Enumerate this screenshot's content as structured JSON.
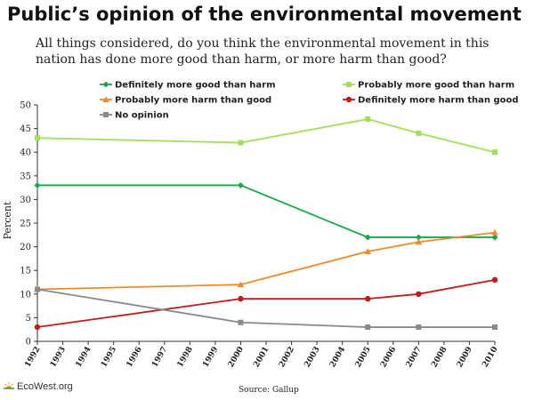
{
  "title": "Public’s opinion of the environmental movement",
  "subtitle": "All things considered, do you think the environmental movement in this nation has done more good than harm, or more harm than good?",
  "source": "Source: Gallup",
  "logo_text": "EcoWest.org",
  "chart_data": {
    "type": "line",
    "ylabel": "Percent",
    "ylim": [
      0,
      50
    ],
    "yticks": [
      0,
      5,
      10,
      15,
      20,
      25,
      30,
      35,
      40,
      45,
      50
    ],
    "xlim": [
      1992,
      2010
    ],
    "xticks": [
      "1992",
      "1993",
      "1994",
      "1995",
      "1996",
      "1997",
      "1998",
      "1999",
      "2000",
      "2001",
      "2002",
      "2003",
      "2004",
      "2005",
      "2006",
      "2007",
      "2008",
      "2009",
      "2010"
    ],
    "x": [
      1992,
      2000,
      2005,
      2007,
      2010
    ],
    "legend_position": "top",
    "series": [
      {
        "name": "Definitely more good than harm",
        "values": [
          33,
          33,
          22,
          22,
          22
        ],
        "color": "#1aa84a",
        "marker": "diamond"
      },
      {
        "name": "Probably more good than harm",
        "values": [
          43,
          42,
          47,
          44,
          40
        ],
        "color": "#a2e05a",
        "marker": "square"
      },
      {
        "name": "Probably more harm than good",
        "values": [
          11,
          12,
          19,
          21,
          23
        ],
        "color": "#f08a2a",
        "marker": "triangle"
      },
      {
        "name": "Definitely more harm than good",
        "values": [
          3,
          9,
          9,
          10,
          13
        ],
        "color": "#c41a1a",
        "marker": "circle"
      },
      {
        "name": "No opinion",
        "values": [
          11,
          4,
          3,
          3,
          3
        ],
        "color": "#8a8a8a",
        "marker": "square"
      }
    ]
  }
}
